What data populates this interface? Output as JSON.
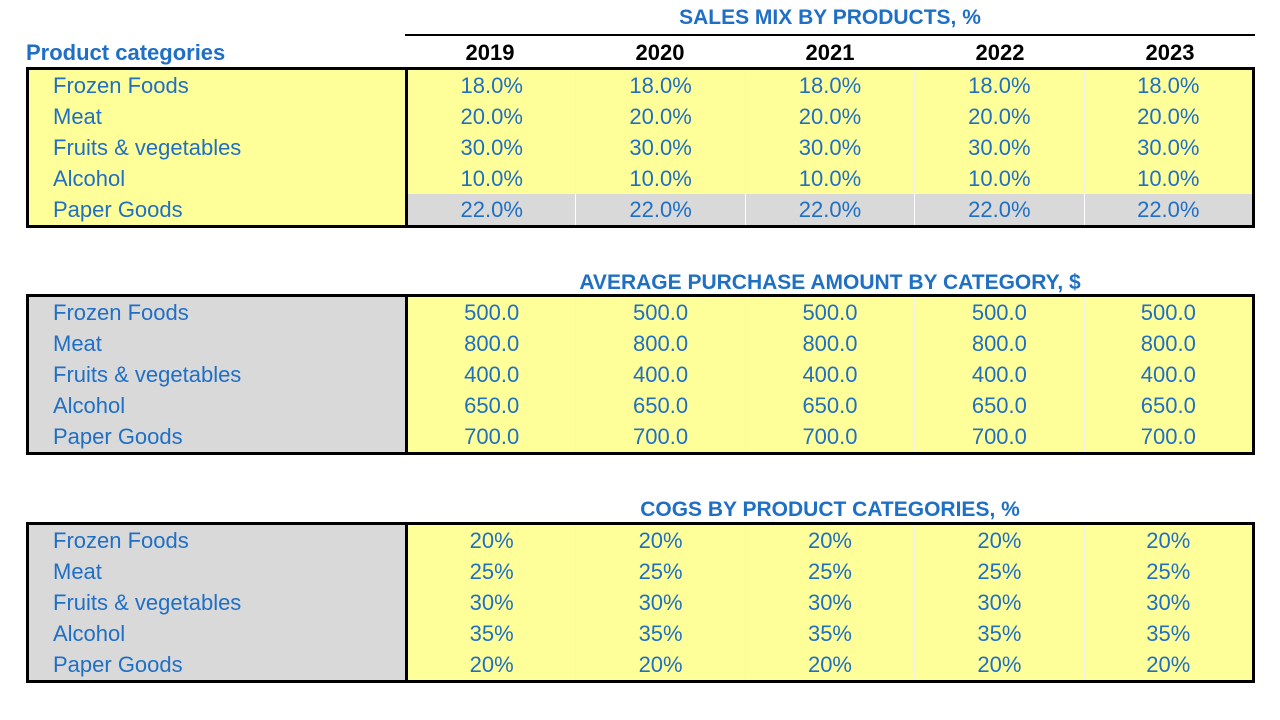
{
  "header": {
    "categories_label": "Product categories",
    "years": [
      "2019",
      "2020",
      "2021",
      "2022",
      "2023"
    ]
  },
  "sales_mix": {
    "title": "SALES MIX BY PRODUCTS, %",
    "rows": [
      {
        "label": "Frozen Foods",
        "values": [
          "18.0%",
          "18.0%",
          "18.0%",
          "18.0%",
          "18.0%"
        ]
      },
      {
        "label": "Meat",
        "values": [
          "20.0%",
          "20.0%",
          "20.0%",
          "20.0%",
          "20.0%"
        ]
      },
      {
        "label": "Fruits & vegetables",
        "values": [
          "30.0%",
          "30.0%",
          "30.0%",
          "30.0%",
          "30.0%"
        ]
      },
      {
        "label": "Alcohol",
        "values": [
          "10.0%",
          "10.0%",
          "10.0%",
          "10.0%",
          "10.0%"
        ]
      },
      {
        "label": "Paper Goods",
        "values": [
          "22.0%",
          "22.0%",
          "22.0%",
          "22.0%",
          "22.0%"
        ]
      }
    ]
  },
  "avg_purchase": {
    "title": "AVERAGE PURCHASE AMOUNT BY CATEGORY, $",
    "rows": [
      {
        "label": "Frozen Foods",
        "values": [
          "500.0",
          "500.0",
          "500.0",
          "500.0",
          "500.0"
        ]
      },
      {
        "label": "Meat",
        "values": [
          "800.0",
          "800.0",
          "800.0",
          "800.0",
          "800.0"
        ]
      },
      {
        "label": "Fruits & vegetables",
        "values": [
          "400.0",
          "400.0",
          "400.0",
          "400.0",
          "400.0"
        ]
      },
      {
        "label": "Alcohol",
        "values": [
          "650.0",
          "650.0",
          "650.0",
          "650.0",
          "650.0"
        ]
      },
      {
        "label": "Paper Goods",
        "values": [
          "700.0",
          "700.0",
          "700.0",
          "700.0",
          "700.0"
        ]
      }
    ]
  },
  "cogs": {
    "title": "COGS BY PRODUCT CATEGORIES, %",
    "rows": [
      {
        "label": "Frozen Foods",
        "values": [
          "20%",
          "20%",
          "20%",
          "20%",
          "20%"
        ]
      },
      {
        "label": "Meat",
        "values": [
          "25%",
          "25%",
          "25%",
          "25%",
          "25%"
        ]
      },
      {
        "label": "Fruits & vegetables",
        "values": [
          "30%",
          "30%",
          "30%",
          "30%",
          "30%"
        ]
      },
      {
        "label": "Alcohol",
        "values": [
          "35%",
          "35%",
          "35%",
          "35%",
          "35%"
        ]
      },
      {
        "label": "Paper Goods",
        "values": [
          "20%",
          "20%",
          "20%",
          "20%",
          "20%"
        ]
      }
    ]
  },
  "colors": {
    "input_yellow": "#ffff99",
    "label_gray": "#d9d9d9",
    "text_blue": "#1f6fc5"
  }
}
